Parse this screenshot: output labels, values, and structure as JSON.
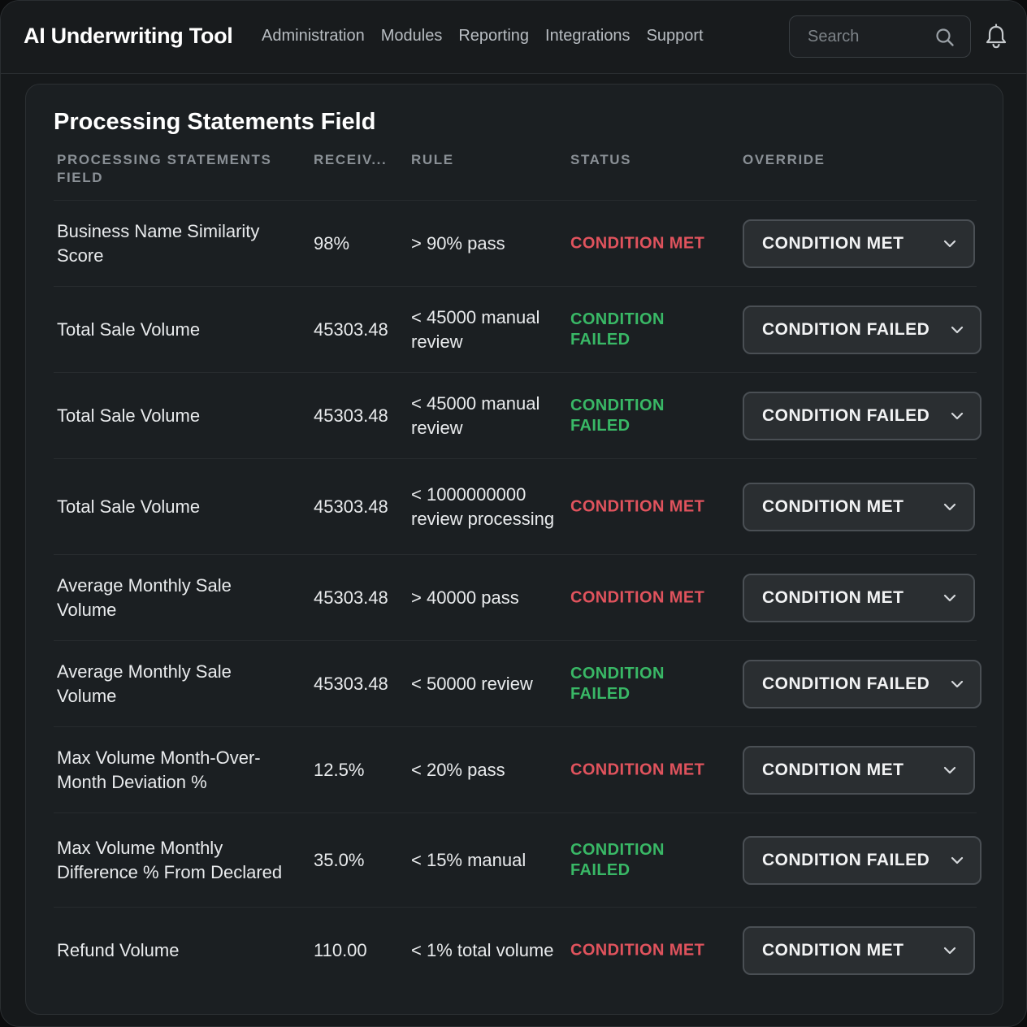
{
  "app": {
    "title": "AI Underwriting Tool",
    "nav": [
      "Administration",
      "Modules",
      "Reporting",
      "Integrations",
      "Support"
    ],
    "search_placeholder": "Search"
  },
  "card": {
    "title": "Processing Statements Field",
    "columns": {
      "field": "PROCESSING STATEMENTS FIELD",
      "received": "RECEIV...",
      "rule": "RULE",
      "status": "STATUS",
      "override": "OVERRIDE"
    },
    "rows": [
      {
        "field": "Business Name Similarity Score",
        "received": "98%",
        "rule": "> 90% pass",
        "status": "CONDITION MET",
        "override": "CONDITION MET"
      },
      {
        "field": "Total Sale Volume",
        "received": "45303.48",
        "rule": "< 45000 manual review",
        "status": "CONDITION FAILED",
        "override": "CONDITION FAILED"
      },
      {
        "field": "Total Sale Volume",
        "received": "45303.48",
        "rule": "< 45000 manual review",
        "status": "CONDITION FAILED",
        "override": "CONDITION FAILED"
      },
      {
        "field": "Total Sale Volume",
        "received": "45303.48",
        "rule": "< 1000000000 review processing",
        "status": "CONDITION MET",
        "override": "CONDITION MET"
      },
      {
        "field": "Average Monthly Sale Volume",
        "received": "45303.48",
        "rule": "> 40000 pass",
        "status": "CONDITION MET",
        "override": "CONDITION MET"
      },
      {
        "field": "Average Monthly Sale Volume",
        "received": "45303.48",
        "rule": "< 50000 review",
        "status": "CONDITION FAILED",
        "override": "CONDITION FAILED"
      },
      {
        "field": "Max Volume Month-Over-Month Deviation %",
        "received": "12.5%",
        "rule": "< 20% pass",
        "status": "CONDITION MET",
        "override": "CONDITION MET"
      },
      {
        "field": "Max Volume Monthly Difference % From Declared",
        "received": "35.0%",
        "rule": "< 15% manual",
        "status": "CONDITION FAILED",
        "override": "CONDITION FAILED"
      },
      {
        "field": "Refund Volume",
        "received": "110.00",
        "rule": "< 1% total volume",
        "status": "CONDITION MET",
        "override": "CONDITION MET"
      }
    ]
  },
  "colors": {
    "status_met": "#e0535d",
    "status_failed": "#39b866"
  },
  "icons": [
    "search-icon",
    "bell-icon",
    "chevron-down-icon"
  ]
}
